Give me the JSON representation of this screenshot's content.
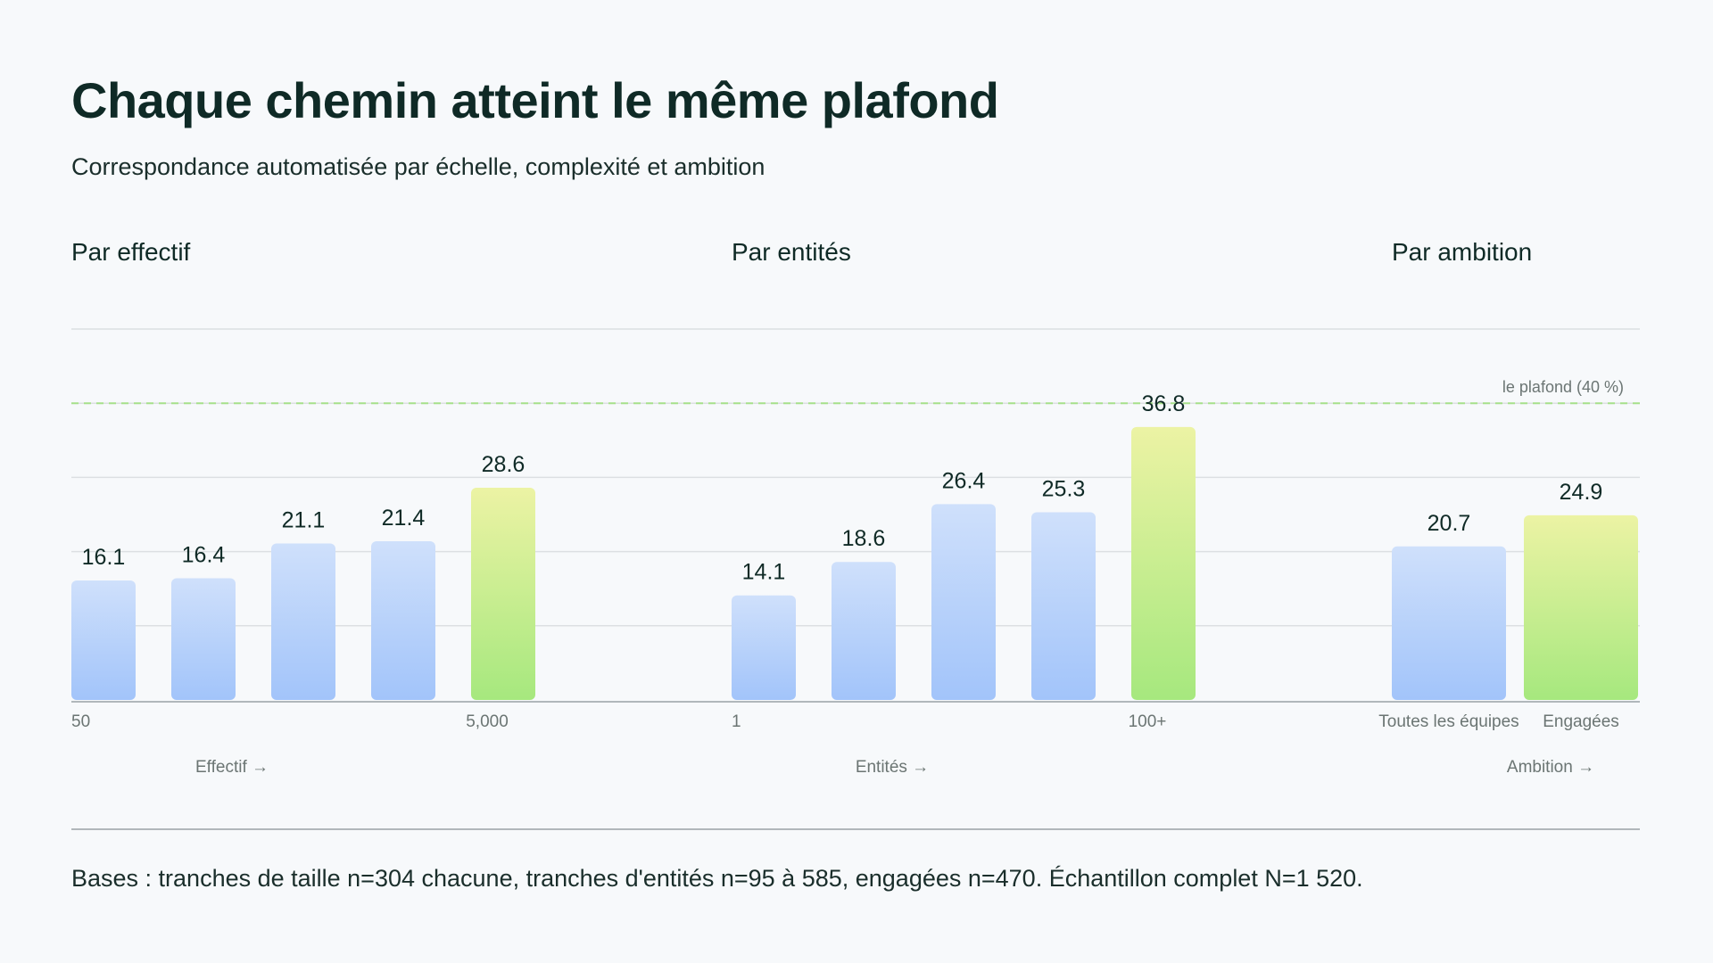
{
  "header": {
    "title": "Chaque chemin atteint le même plafond",
    "subtitle": "Correspondance automatisée par échelle, complexité et ambition"
  },
  "footnote": "Bases : tranches de taille n=304 chacune, tranches d'entités n=95 à 585, engagées n=470. Échantillon complet N=1 520.",
  "colors": {
    "bar_top": "#cfe0fb",
    "bar_bottom": "#a2c4fa",
    "highlight_top": "#ecf3a4",
    "highlight_bottom": "#a6e87e",
    "ceiling_line": "#a6e08a",
    "grid": "#dcdfe2",
    "axis": "#9aa1a6"
  },
  "chart_data": {
    "type": "bar",
    "unit": "%",
    "ylim": [
      0,
      50
    ],
    "grid": true,
    "reference_line": {
      "value": 40,
      "label": "le plafond (40 %)"
    },
    "panels": [
      {
        "title": "Par effectif",
        "xlabel": "Effectif →",
        "tick_labels": [
          "50",
          "",
          "",
          "",
          "5,000"
        ],
        "values": [
          16.1,
          16.4,
          21.1,
          21.4,
          28.6
        ],
        "highlight": [
          false,
          false,
          false,
          false,
          true
        ]
      },
      {
        "title": "Par entités",
        "xlabel": "Entités →",
        "tick_labels": [
          "1",
          "",
          "",
          "",
          "100+"
        ],
        "values": [
          14.1,
          18.6,
          26.4,
          25.3,
          36.8
        ],
        "highlight": [
          false,
          false,
          false,
          false,
          true
        ]
      },
      {
        "title": "Par ambition",
        "xlabel": "Ambition →",
        "tick_labels": [
          "Toutes les équipes",
          "Engagées"
        ],
        "values": [
          20.7,
          24.9
        ],
        "highlight": [
          false,
          true
        ]
      }
    ]
  }
}
